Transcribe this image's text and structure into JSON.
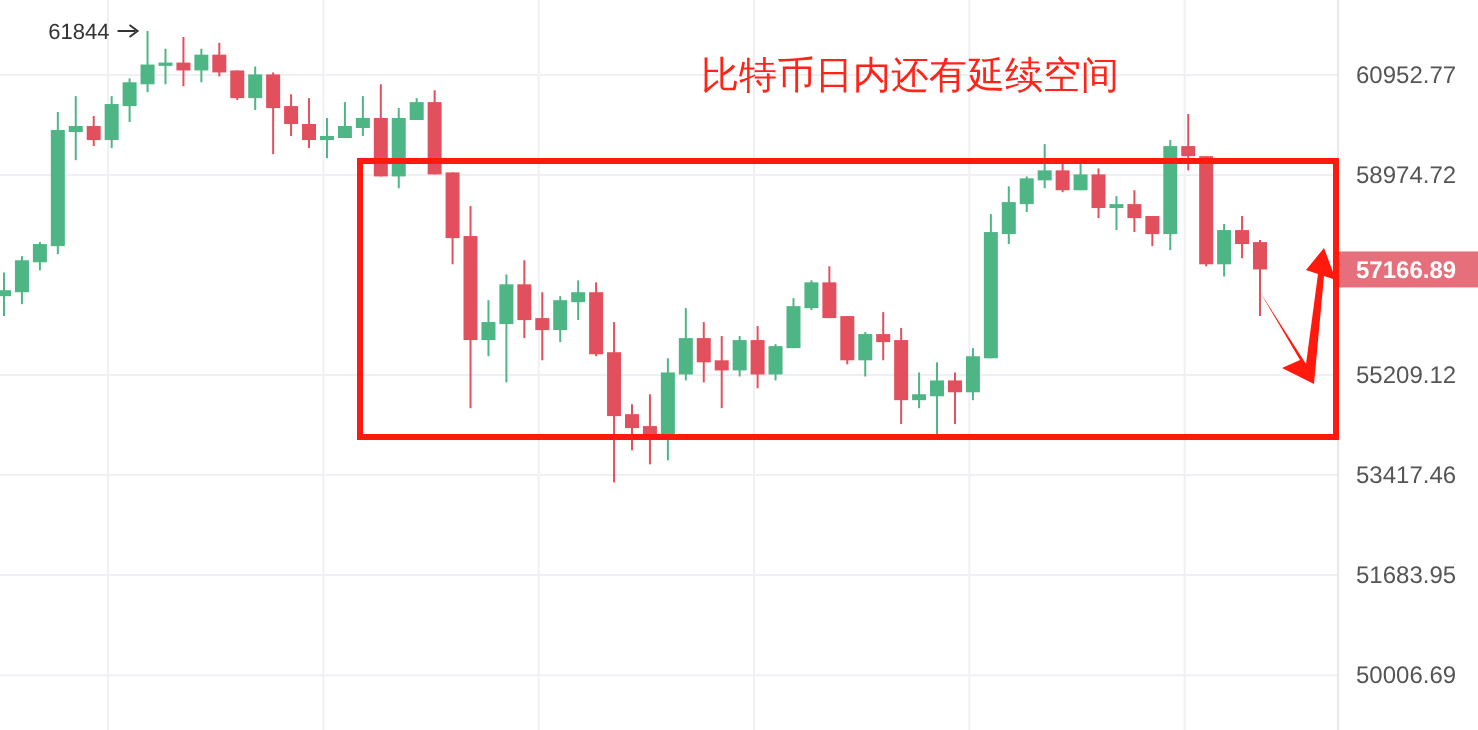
{
  "chart_data": {
    "type": "candlestick",
    "title": "比特币日内还有延续空间",
    "categories": [
      null,
      null,
      null,
      null,
      null,
      null,
      null,
      null,
      null,
      null,
      null,
      null,
      null,
      null,
      null,
      null,
      null,
      null,
      null,
      null,
      null,
      null,
      null,
      null,
      null,
      null,
      null,
      null,
      null,
      null,
      null,
      null,
      null,
      null,
      null,
      null,
      null,
      null,
      null,
      null,
      null,
      null,
      null,
      null,
      null,
      null,
      null,
      null,
      null,
      null,
      null,
      null,
      null,
      null,
      null,
      null,
      null,
      null,
      null,
      null,
      null,
      null,
      null,
      null,
      null,
      null,
      null,
      null,
      null,
      null,
      null
    ],
    "ohlc": [
      [
        56665,
        57111,
        56294,
        56776
      ],
      [
        56739,
        57417,
        56516,
        57340
      ],
      [
        57302,
        57685,
        57149,
        57647
      ],
      [
        57608,
        60213,
        57455,
        59857
      ],
      [
        59818,
        60530,
        59264,
        59936
      ],
      [
        59936,
        60134,
        59541,
        59659
      ],
      [
        59659,
        60530,
        59501,
        60372
      ],
      [
        60332,
        60886,
        60015,
        60807
      ],
      [
        60767,
        61844,
        60609,
        61164
      ],
      [
        61137,
        61484,
        60767,
        61204
      ],
      [
        61204,
        61723,
        60728,
        61045
      ],
      [
        61045,
        61484,
        60807,
        61364
      ],
      [
        61364,
        61603,
        60925,
        61005
      ],
      [
        61045,
        61045,
        60451,
        60490
      ],
      [
        60490,
        61125,
        60253,
        60965
      ],
      [
        60965,
        61005,
        59383,
        60292
      ],
      [
        60332,
        60569,
        59739,
        59976
      ],
      [
        59976,
        60490,
        59501,
        59659
      ],
      [
        59659,
        60095,
        59303,
        59739
      ],
      [
        59699,
        60411,
        59699,
        59936
      ],
      [
        59897,
        60530,
        59739,
        60095
      ],
      [
        60095,
        60767,
        58948,
        58948
      ],
      [
        58948,
        60292,
        58719,
        60095
      ],
      [
        60055,
        60490,
        60055,
        60411
      ],
      [
        60411,
        60648,
        58987,
        58987
      ],
      [
        59026,
        59026,
        57264,
        57761
      ],
      [
        57800,
        58374,
        54610,
        55850
      ],
      [
        55850,
        56590,
        55553,
        56183
      ],
      [
        56146,
        57072,
        55076,
        56887
      ],
      [
        56887,
        57340,
        55887,
        56220
      ],
      [
        56257,
        56739,
        55479,
        56035
      ],
      [
        56035,
        56665,
        55813,
        56590
      ],
      [
        56553,
        56961,
        56220,
        56739
      ],
      [
        56739,
        56924,
        55553,
        55590
      ],
      [
        55627,
        56183,
        53289,
        54467
      ],
      [
        54502,
        54682,
        53858,
        54252
      ],
      [
        54288,
        54861,
        53607,
        54145
      ],
      [
        54145,
        55516,
        53679,
        55257
      ],
      [
        55220,
        56442,
        55112,
        55887
      ],
      [
        55887,
        56183,
        55076,
        55442
      ],
      [
        55479,
        55924,
        54610,
        55294
      ],
      [
        55294,
        55924,
        55184,
        55850
      ],
      [
        55850,
        56109,
        54969,
        55220
      ],
      [
        55220,
        55776,
        55112,
        55739
      ],
      [
        55702,
        56627,
        55702,
        56479
      ],
      [
        56442,
        56961,
        56405,
        56924
      ],
      [
        56924,
        57226,
        56257,
        56257
      ],
      [
        56294,
        56294,
        55405,
        55479
      ],
      [
        55479,
        55998,
        55184,
        55961
      ],
      [
        55961,
        56368,
        55479,
        55813
      ],
      [
        55850,
        56072,
        54324,
        54754
      ],
      [
        54754,
        55257,
        54610,
        54861
      ],
      [
        54825,
        55442,
        54145,
        55112
      ],
      [
        55112,
        55257,
        54324,
        54897
      ],
      [
        54897,
        55702,
        54754,
        55553
      ],
      [
        55516,
        58221,
        55516,
        57876
      ],
      [
        57838,
        58757,
        57647,
        58451
      ],
      [
        58412,
        58948,
        58259,
        58910
      ],
      [
        58872,
        59580,
        58719,
        59066
      ],
      [
        59066,
        59224,
        58642,
        58680
      ],
      [
        58680,
        59224,
        58680,
        58987
      ],
      [
        58987,
        59105,
        58144,
        58336
      ],
      [
        58336,
        58565,
        57914,
        58412
      ],
      [
        58412,
        58680,
        57876,
        58144
      ],
      [
        58183,
        58183,
        57608,
        57838
      ],
      [
        57838,
        59659,
        57532,
        59541
      ],
      [
        59541,
        60174,
        59066,
        59343
      ],
      [
        59343,
        59343,
        57226,
        57264
      ],
      [
        57264,
        58029,
        57035,
        57914
      ],
      [
        57914,
        58183,
        57379,
        57647
      ],
      [
        57685,
        57723,
        56294,
        57166.89
      ]
    ],
    "ylim": [
      49110,
      62480
    ],
    "log": true,
    "yticks": [
      50006.69,
      51683.95,
      53417.46,
      55209.12,
      58974.72,
      60952.77
    ],
    "grid": true,
    "annotations": [
      "61844",
      "57166.89"
    ]
  }
}
